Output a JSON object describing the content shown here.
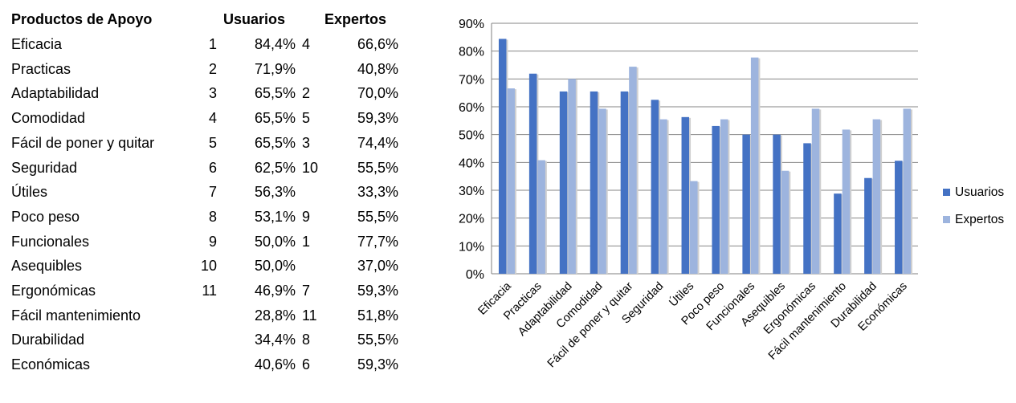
{
  "table": {
    "headers": {
      "product": "Productos de Apoyo",
      "users": "Usuarios",
      "experts": "Expertos"
    },
    "rows": [
      {
        "name": "Eficacia",
        "u_rank": "1",
        "u_pct": "84,4%",
        "e_rank": "4",
        "e_pct": "66,6%"
      },
      {
        "name": "Practicas",
        "u_rank": "2",
        "u_pct": "71,9%",
        "e_rank": "",
        "e_pct": "40,8%"
      },
      {
        "name": "Adaptabilidad",
        "u_rank": "3",
        "u_pct": "65,5%",
        "e_rank": "2",
        "e_pct": "70,0%"
      },
      {
        "name": "Comodidad",
        "u_rank": "4",
        "u_pct": "65,5%",
        "e_rank": "5",
        "e_pct": "59,3%"
      },
      {
        "name": "Fácil de poner y quitar",
        "u_rank": "5",
        "u_pct": "65,5%",
        "e_rank": "3",
        "e_pct": "74,4%"
      },
      {
        "name": "Seguridad",
        "u_rank": "6",
        "u_pct": "62,5%",
        "e_rank": "10",
        "e_pct": "55,5%"
      },
      {
        "name": "Útiles",
        "u_rank": "7",
        "u_pct": "56,3%",
        "e_rank": "",
        "e_pct": "33,3%"
      },
      {
        "name": "Poco peso",
        "u_rank": "8",
        "u_pct": "53,1%",
        "e_rank": "9",
        "e_pct": "55,5%"
      },
      {
        "name": "Funcionales",
        "u_rank": "9",
        "u_pct": "50,0%",
        "e_rank": "1",
        "e_pct": "77,7%"
      },
      {
        "name": "Asequibles",
        "u_rank": "10",
        "u_pct": "50,0%",
        "e_rank": "",
        "e_pct": "37,0%"
      },
      {
        "name": "Ergonómicas",
        "u_rank": "11",
        "u_pct": "46,9%",
        "e_rank": "7",
        "e_pct": "59,3%"
      },
      {
        "name": "Fácil mantenimiento",
        "u_rank": "",
        "u_pct": "28,8%",
        "e_rank": "11",
        "e_pct": "51,8%"
      },
      {
        "name": "Durabilidad",
        "u_rank": "",
        "u_pct": "34,4%",
        "e_rank": "8",
        "e_pct": "55,5%"
      },
      {
        "name": "Económicas",
        "u_rank": "",
        "u_pct": "40,6%",
        "e_rank": "6",
        "e_pct": "59,3%"
      }
    ]
  },
  "chart_data": {
    "type": "bar",
    "categories": [
      "Eficacia",
      "Practicas",
      "Adaptabilidad",
      "Comodidad",
      "Fácil de poner y quitar",
      "Seguridad",
      "Útiles",
      "Poco peso",
      "Funcionales",
      "Asequibles",
      "Ergonómicas",
      "Fácil mantenimiento",
      "Durabilidad",
      "Económicas"
    ],
    "series": [
      {
        "name": "Usuarios",
        "color": "#4472C4",
        "values": [
          84.4,
          71.9,
          65.5,
          65.5,
          65.5,
          62.5,
          56.3,
          53.1,
          50.0,
          50.0,
          46.9,
          28.8,
          34.4,
          40.6
        ]
      },
      {
        "name": "Expertos",
        "color": "#9DB4DE",
        "values": [
          66.6,
          40.8,
          70.0,
          59.3,
          74.4,
          55.5,
          33.3,
          55.5,
          77.7,
          37.0,
          59.3,
          51.8,
          55.5,
          59.3
        ]
      }
    ],
    "yticks": [
      "0%",
      "10%",
      "20%",
      "30%",
      "40%",
      "50%",
      "60%",
      "70%",
      "80%",
      "90%"
    ],
    "ylim": [
      0,
      90
    ],
    "grid": true,
    "legend": "right"
  }
}
